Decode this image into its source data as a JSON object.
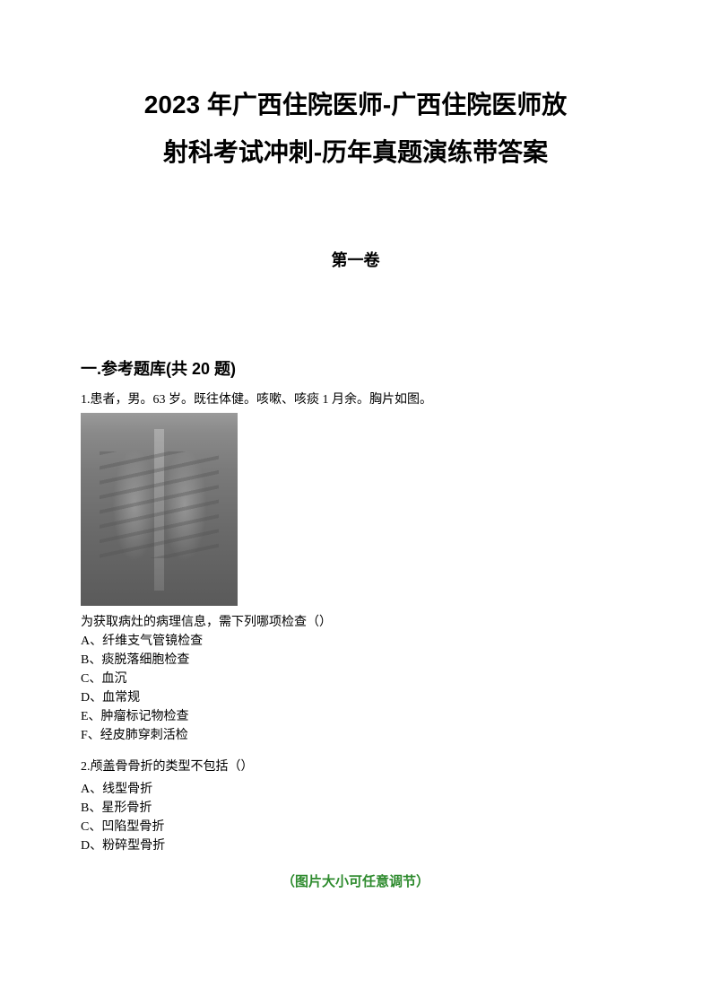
{
  "title": {
    "line1": "2023 年广西住院医师-广西住院医师放",
    "line2": "射科考试冲刺-历年真题演练带答案"
  },
  "subtitle": "第一卷",
  "section_heading": "一.参考题库(共 20 题)",
  "questions": [
    {
      "number": "1.",
      "stem": "患者，男。63 岁。既往体健。咳嗽、咳痰 1 月余。胸片如图。",
      "has_image": true,
      "followup": "为获取病灶的病理信息，需下列哪项检查（）",
      "options": [
        "A、纤维支气管镜检查",
        "B、痰脱落细胞检查",
        "C、血沉",
        "D、血常规",
        "E、肿瘤标记物检查",
        "F、经皮肺穿刺活检"
      ]
    },
    {
      "number": "2.",
      "stem": "颅盖骨骨折的类型不包括（）",
      "has_image": false,
      "followup": "",
      "options": [
        "A、线型骨折",
        "B、星形骨折",
        "C、凹陷型骨折",
        "D、粉碎型骨折"
      ]
    }
  ],
  "footer_note": "（图片大小可任意调节）",
  "colors": {
    "text": "#000000",
    "footer": "#2e8b2e",
    "background": "#ffffff"
  }
}
